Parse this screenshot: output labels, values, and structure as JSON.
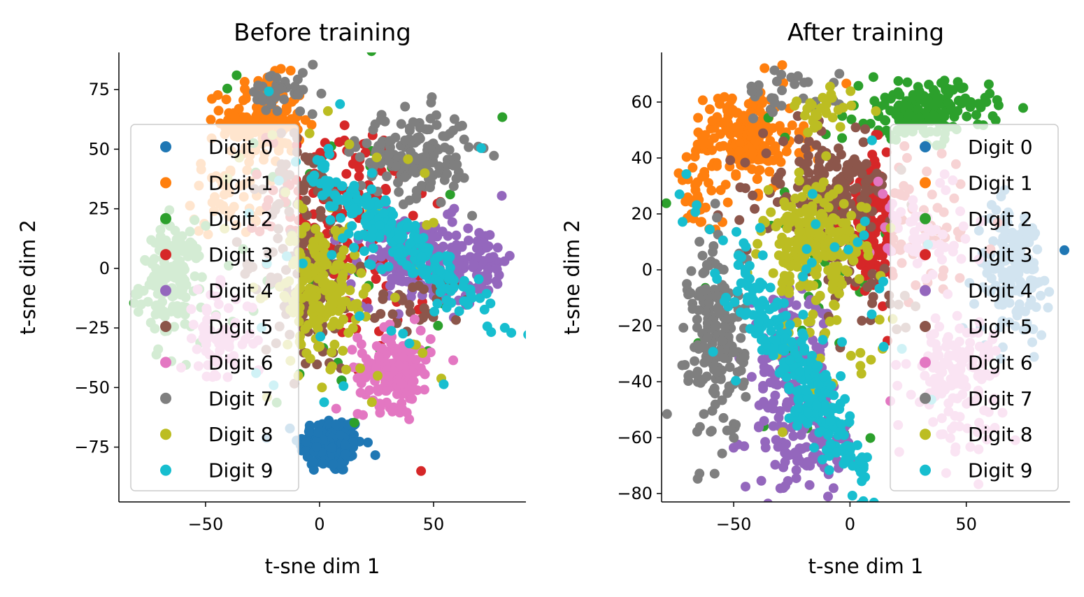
{
  "chart_data": [
    {
      "type": "scatter",
      "title": "Before training",
      "xlabel": "t-sne dim 1",
      "ylabel": "t-sne dim 2",
      "xlim": [
        -88,
        90.5
      ],
      "ylim": [
        -98,
        90.6
      ],
      "xticks": [
        -50,
        0,
        50
      ],
      "yticks": [
        75,
        50,
        25,
        0,
        -25,
        -50,
        -75
      ],
      "xtick_labels": [
        "−50",
        "0",
        "50"
      ],
      "ytick_labels": [
        "75",
        "50",
        "25",
        "0",
        "−25",
        "−50",
        "−75"
      ],
      "legend_position": "center-left",
      "series": [
        {
          "name": "Digit 0",
          "color": "#1f77b4",
          "clusters": [
            {
              "cx": 5,
              "cy": -74,
              "sx": 7,
              "sy": 6,
              "n": 170
            }
          ]
        },
        {
          "name": "Digit 1",
          "color": "#ff7f0e",
          "clusters": [
            {
              "cx": -25,
              "cy": 62,
              "sx": 9,
              "sy": 9,
              "n": 160
            },
            {
              "cx": -40,
              "cy": 30,
              "sx": 8,
              "sy": 8,
              "n": 40
            }
          ]
        },
        {
          "name": "Digit 2",
          "color": "#2ca02c",
          "clusters": [
            {
              "cx": -65,
              "cy": -6,
              "sx": 7,
              "sy": 12,
              "n": 150
            },
            {
              "cx": 5,
              "cy": 10,
              "sx": 25,
              "sy": 40,
              "n": 40
            }
          ]
        },
        {
          "name": "Digit 3",
          "color": "#d62728",
          "clusters": [
            {
              "cx": 8,
              "cy": 30,
              "sx": 15,
              "sy": 15,
              "n": 120
            },
            {
              "cx": 20,
              "cy": -10,
              "sx": 18,
              "sy": 25,
              "n": 40
            }
          ]
        },
        {
          "name": "Digit 4",
          "color": "#9467bd",
          "clusters": [
            {
              "cx": 45,
              "cy": 3,
              "sx": 15,
              "sy": 9,
              "n": 170
            },
            {
              "cx": 70,
              "cy": 3,
              "sx": 6,
              "sy": 8,
              "n": 50
            }
          ]
        },
        {
          "name": "Digit 5",
          "color": "#8c564b",
          "clusters": [
            {
              "cx": -5,
              "cy": 5,
              "sx": 10,
              "sy": 25,
              "n": 170
            },
            {
              "cx": 45,
              "cy": -15,
              "sx": 12,
              "sy": 6,
              "n": 30
            }
          ]
        },
        {
          "name": "Digit 6",
          "color": "#e377c2",
          "clusters": [
            {
              "cx": 33,
              "cy": -42,
              "sx": 8,
              "sy": 8,
              "n": 170
            },
            {
              "cx": -45,
              "cy": -30,
              "sx": 8,
              "sy": 10,
              "n": 70
            }
          ]
        },
        {
          "name": "Digit 7",
          "color": "#7f7f7f",
          "clusters": [
            {
              "cx": 42,
              "cy": 48,
              "sx": 12,
              "sy": 9,
              "n": 170
            },
            {
              "cx": -15,
              "cy": 73,
              "sx": 8,
              "sy": 5,
              "n": 40
            }
          ]
        },
        {
          "name": "Digit 8",
          "color": "#bcbd22",
          "clusters": [
            {
              "cx": 0,
              "cy": -8,
              "sx": 8,
              "sy": 14,
              "n": 170
            },
            {
              "cx": 10,
              "cy": 5,
              "sx": 25,
              "sy": 35,
              "n": 40
            }
          ]
        },
        {
          "name": "Digit 9",
          "color": "#17becf",
          "clusters": [
            {
              "cx": 35,
              "cy": 12,
              "sx": 24,
              "sy": 5,
              "n": 220,
              "angle": -40
            },
            {
              "cx": 10,
              "cy": 10,
              "sx": 25,
              "sy": 35,
              "n": 30
            }
          ]
        }
      ]
    },
    {
      "type": "scatter",
      "title": "After training",
      "xlabel": "t-sne dim 1",
      "ylabel": "t-sne dim 2",
      "xlim": [
        -81,
        94.6
      ],
      "ylim": [
        -83,
        77.75
      ],
      "xticks": [
        -50,
        0,
        50
      ],
      "yticks": [
        60,
        40,
        20,
        0,
        -20,
        -40,
        -60,
        -80
      ],
      "xtick_labels": [
        "−50",
        "0",
        "50"
      ],
      "ytick_labels": [
        "60",
        "40",
        "20",
        "0",
        "−20",
        "−40",
        "−60",
        "−80"
      ],
      "legend_position": "center-right",
      "series": [
        {
          "name": "Digit 0",
          "color": "#1f77b4",
          "clusters": [
            {
              "cx": 70,
              "cy": 0,
              "sx": 8,
              "sy": 12,
              "n": 150
            }
          ]
        },
        {
          "name": "Digit 1",
          "color": "#ff7f0e",
          "clusters": [
            {
              "cx": -45,
              "cy": 47,
              "sx": 12,
              "sy": 9,
              "n": 200
            },
            {
              "cx": -65,
              "cy": 25,
              "sx": 4,
              "sy": 6,
              "n": 30
            }
          ]
        },
        {
          "name": "Digit 2",
          "color": "#2ca02c",
          "clusters": [
            {
              "cx": 32,
              "cy": 57,
              "sx": 14,
              "sy": 5,
              "n": 180
            },
            {
              "cx": -10,
              "cy": 0,
              "sx": 25,
              "sy": 30,
              "n": 40
            }
          ]
        },
        {
          "name": "Digit 3",
          "color": "#d62728",
          "clusters": [
            {
              "cx": 10,
              "cy": 15,
              "sx": 7,
              "sy": 13,
              "n": 150
            },
            {
              "cx": 35,
              "cy": 15,
              "sx": 12,
              "sy": 10,
              "n": 40
            }
          ]
        },
        {
          "name": "Digit 4",
          "color": "#9467bd",
          "clusters": [
            {
              "cx": -25,
              "cy": -45,
              "sx": 10,
              "sy": 18,
              "n": 200
            },
            {
              "cx": -10,
              "cy": -65,
              "sx": 8,
              "sy": 5,
              "n": 40
            }
          ]
        },
        {
          "name": "Digit 5",
          "color": "#8c564b",
          "clusters": [
            {
              "cx": -10,
              "cy": 28,
              "sx": 14,
              "sy": 9,
              "n": 180
            },
            {
              "cx": 5,
              "cy": -10,
              "sx": 10,
              "sy": 8,
              "n": 30
            }
          ]
        },
        {
          "name": "Digit 6",
          "color": "#e377c2",
          "clusters": [
            {
              "cx": 45,
              "cy": -38,
              "sx": 10,
              "sy": 11,
              "n": 150
            },
            {
              "cx": 30,
              "cy": 15,
              "sx": 10,
              "sy": 10,
              "n": 60
            }
          ]
        },
        {
          "name": "Digit 7",
          "color": "#7f7f7f",
          "clusters": [
            {
              "cx": -57,
              "cy": -25,
              "sx": 6,
              "sy": 18,
              "n": 200
            },
            {
              "cx": -25,
              "cy": 62,
              "sx": 10,
              "sy": 5,
              "n": 30
            }
          ]
        },
        {
          "name": "Digit 8",
          "color": "#bcbd22",
          "clusters": [
            {
              "cx": -15,
              "cy": 10,
              "sx": 11,
              "sy": 9,
              "n": 200
            },
            {
              "cx": -15,
              "cy": 55,
              "sx": 8,
              "sy": 5,
              "n": 30
            },
            {
              "cx": -10,
              "cy": -20,
              "sx": 15,
              "sy": 15,
              "n": 40
            }
          ]
        },
        {
          "name": "Digit 9",
          "color": "#17becf",
          "clusters": [
            {
              "cx": -22,
              "cy": -37,
              "sx": 28,
              "sy": 5,
              "n": 260,
              "angle": -55
            },
            {
              "cx": -10,
              "cy": -5,
              "sx": 25,
              "sy": 20,
              "n": 30
            }
          ]
        }
      ]
    }
  ]
}
